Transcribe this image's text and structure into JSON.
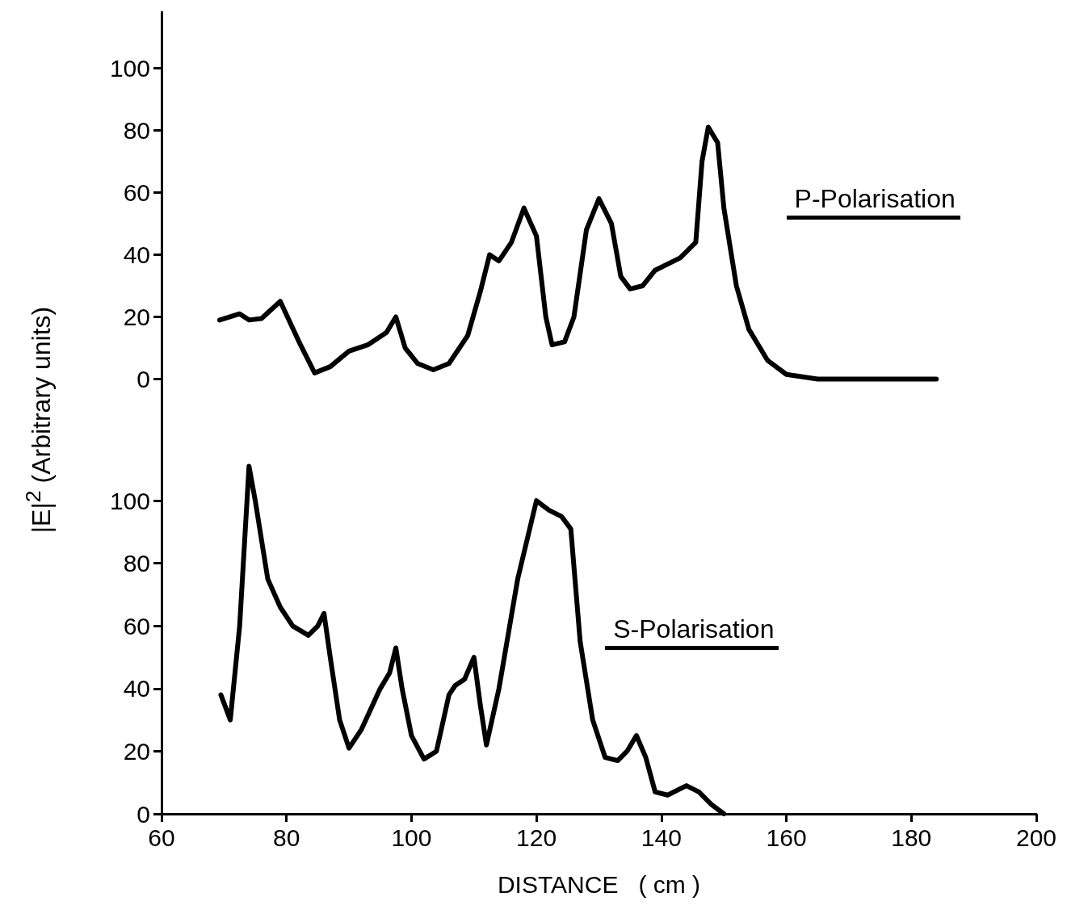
{
  "chart_data": [
    {
      "type": "line",
      "ylabel": "|E|$^{2}$ (Arbitrary units)",
      "xlim": [
        60,
        200
      ],
      "ylim": [
        -24,
        118
      ],
      "yticks": [
        0,
        20,
        40,
        60,
        80,
        100
      ],
      "tick_labels": "y",
      "grid": false,
      "marker": "none",
      "line_style": "solid",
      "series": [
        {
          "name": "P-Polarisation",
          "color": "#000000",
          "x": [
            69.3,
            72.5,
            74,
            76,
            79,
            82,
            84.5,
            87,
            90,
            93,
            96,
            97.5,
            99,
            101,
            103.5,
            106,
            109,
            111,
            112.5,
            114,
            116,
            118,
            120,
            121.5,
            122.5,
            124.5,
            126,
            128,
            130,
            132,
            133.5,
            135,
            137,
            139,
            143,
            145.5,
            146.5,
            147.5,
            149,
            150,
            152,
            154,
            157,
            160,
            165,
            184
          ],
          "values": [
            19,
            21,
            19,
            19.5,
            25,
            12,
            2,
            4,
            9,
            11,
            15,
            20,
            10,
            5,
            3,
            5,
            14,
            28,
            40,
            38,
            44,
            55,
            46,
            20,
            11,
            12,
            20,
            48,
            58,
            50,
            33,
            29,
            30,
            35,
            39,
            44,
            70,
            81,
            76,
            55,
            30,
            16,
            6,
            1.5,
            0,
            0
          ]
        }
      ]
    },
    {
      "type": "line",
      "xlabel": "DISTANCE   ( cm )",
      "xlim": [
        60,
        200
      ],
      "xticks": [
        60,
        80,
        100,
        120,
        140,
        160,
        180,
        200
      ],
      "ylim": [
        0,
        115
      ],
      "yticks": [
        0,
        20,
        40,
        60,
        80,
        100
      ],
      "grid": false,
      "marker": "none",
      "line_style": "solid",
      "series": [
        {
          "name": "S-Polarisation",
          "color": "#000000",
          "x": [
            69.5,
            71,
            72.5,
            74,
            75,
            77,
            79,
            81,
            83.5,
            85,
            86,
            87,
            88.5,
            90,
            92,
            95,
            96.5,
            97.5,
            98.5,
            100,
            102,
            104,
            106,
            107,
            108.5,
            110,
            111,
            112,
            114,
            117,
            120,
            122,
            124,
            125.5,
            127,
            129,
            131,
            133,
            134.5,
            136,
            137.5,
            139,
            141,
            144,
            146,
            148,
            150
          ],
          "values": [
            38,
            30,
            60,
            111,
            100,
            75,
            66,
            60,
            57,
            60,
            64,
            50,
            30,
            21,
            27,
            40,
            45,
            53,
            40,
            25,
            17.5,
            20,
            38,
            41,
            43,
            50,
            35,
            22,
            40,
            75,
            100,
            97,
            95,
            91,
            55,
            30,
            18,
            17,
            20,
            25,
            18,
            7,
            6,
            9,
            7,
            3,
            0
          ]
        }
      ]
    }
  ]
}
